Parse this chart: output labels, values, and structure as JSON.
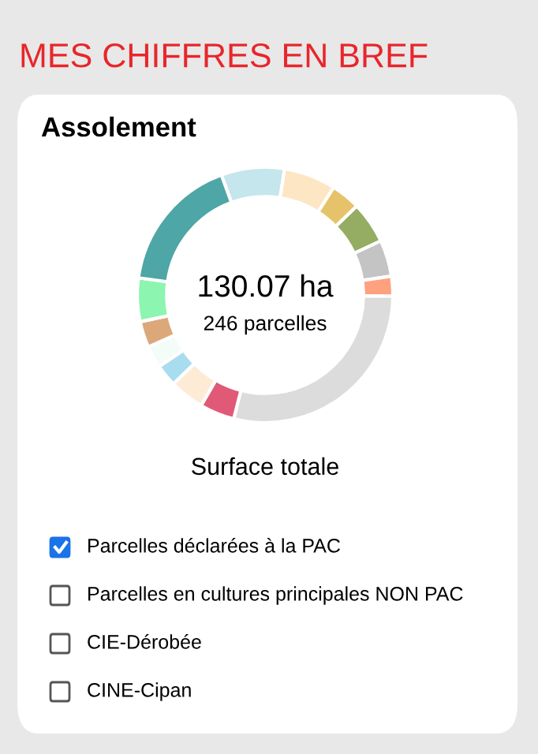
{
  "chart_data": {
    "type": "donut",
    "title": "MES CHIFFRES EN BREF",
    "subtitle": "Assolement",
    "categories": [
      null,
      null,
      null,
      null,
      null,
      null,
      null,
      null,
      null,
      null,
      null,
      null,
      null,
      null
    ],
    "values": [
      8,
      6.6,
      3.7,
      5.3,
      4.6,
      2.5,
      28.8,
      4.4,
      4.4,
      2.8,
      2.8,
      3.3,
      5.5,
      17.3
    ],
    "colors": [
      "#c4e6ec",
      "#fde6c4",
      "#e6c36a",
      "#94ad62",
      "#c4c4c4",
      "#ffa07f",
      "#dcdcdc",
      "#e05a77",
      "#fdebd6",
      "#a8dcef",
      "#f3fcf6",
      "#dca87a",
      "#8cf5b0",
      "#4ea6a6"
    ],
    "annotations": [
      "130.07 ha",
      "246 parcelles",
      "Surface totale",
      "Parcelles déclarées à la PAC",
      "Parcelles en cultures principales NON PAC",
      "CIE-Dérobée",
      "CINE-Cipan"
    ],
    "legend": false
  }
}
